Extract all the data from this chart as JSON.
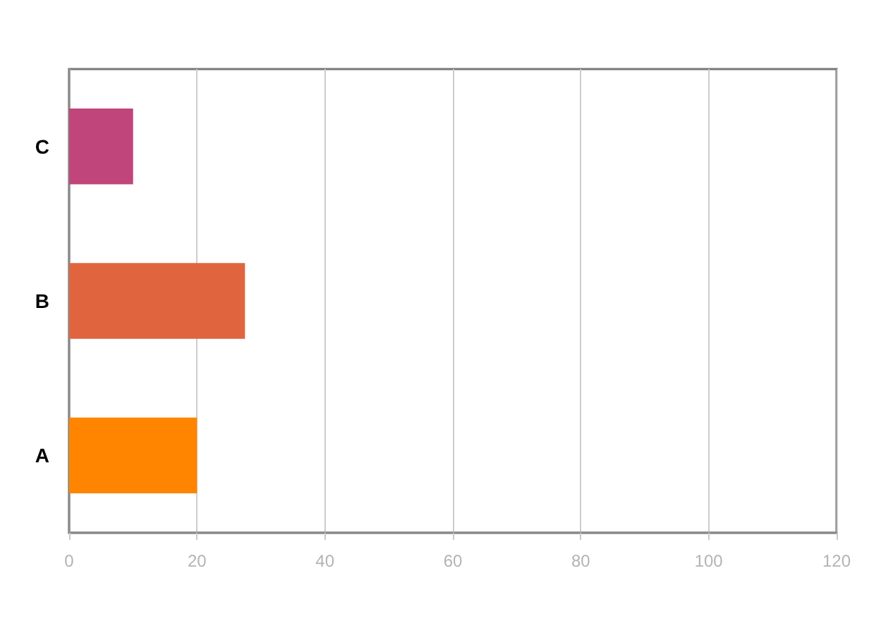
{
  "chart_data": {
    "type": "bar",
    "orientation": "horizontal",
    "categories": [
      "C",
      "B",
      "A"
    ],
    "values": [
      10,
      27.5,
      20
    ],
    "colors": [
      "#c0457a",
      "#e0653f",
      "#ff8400"
    ],
    "xlim": [
      0,
      120
    ],
    "xticks": [
      0,
      20,
      40,
      60,
      80,
      100,
      120
    ],
    "grid": "x"
  }
}
